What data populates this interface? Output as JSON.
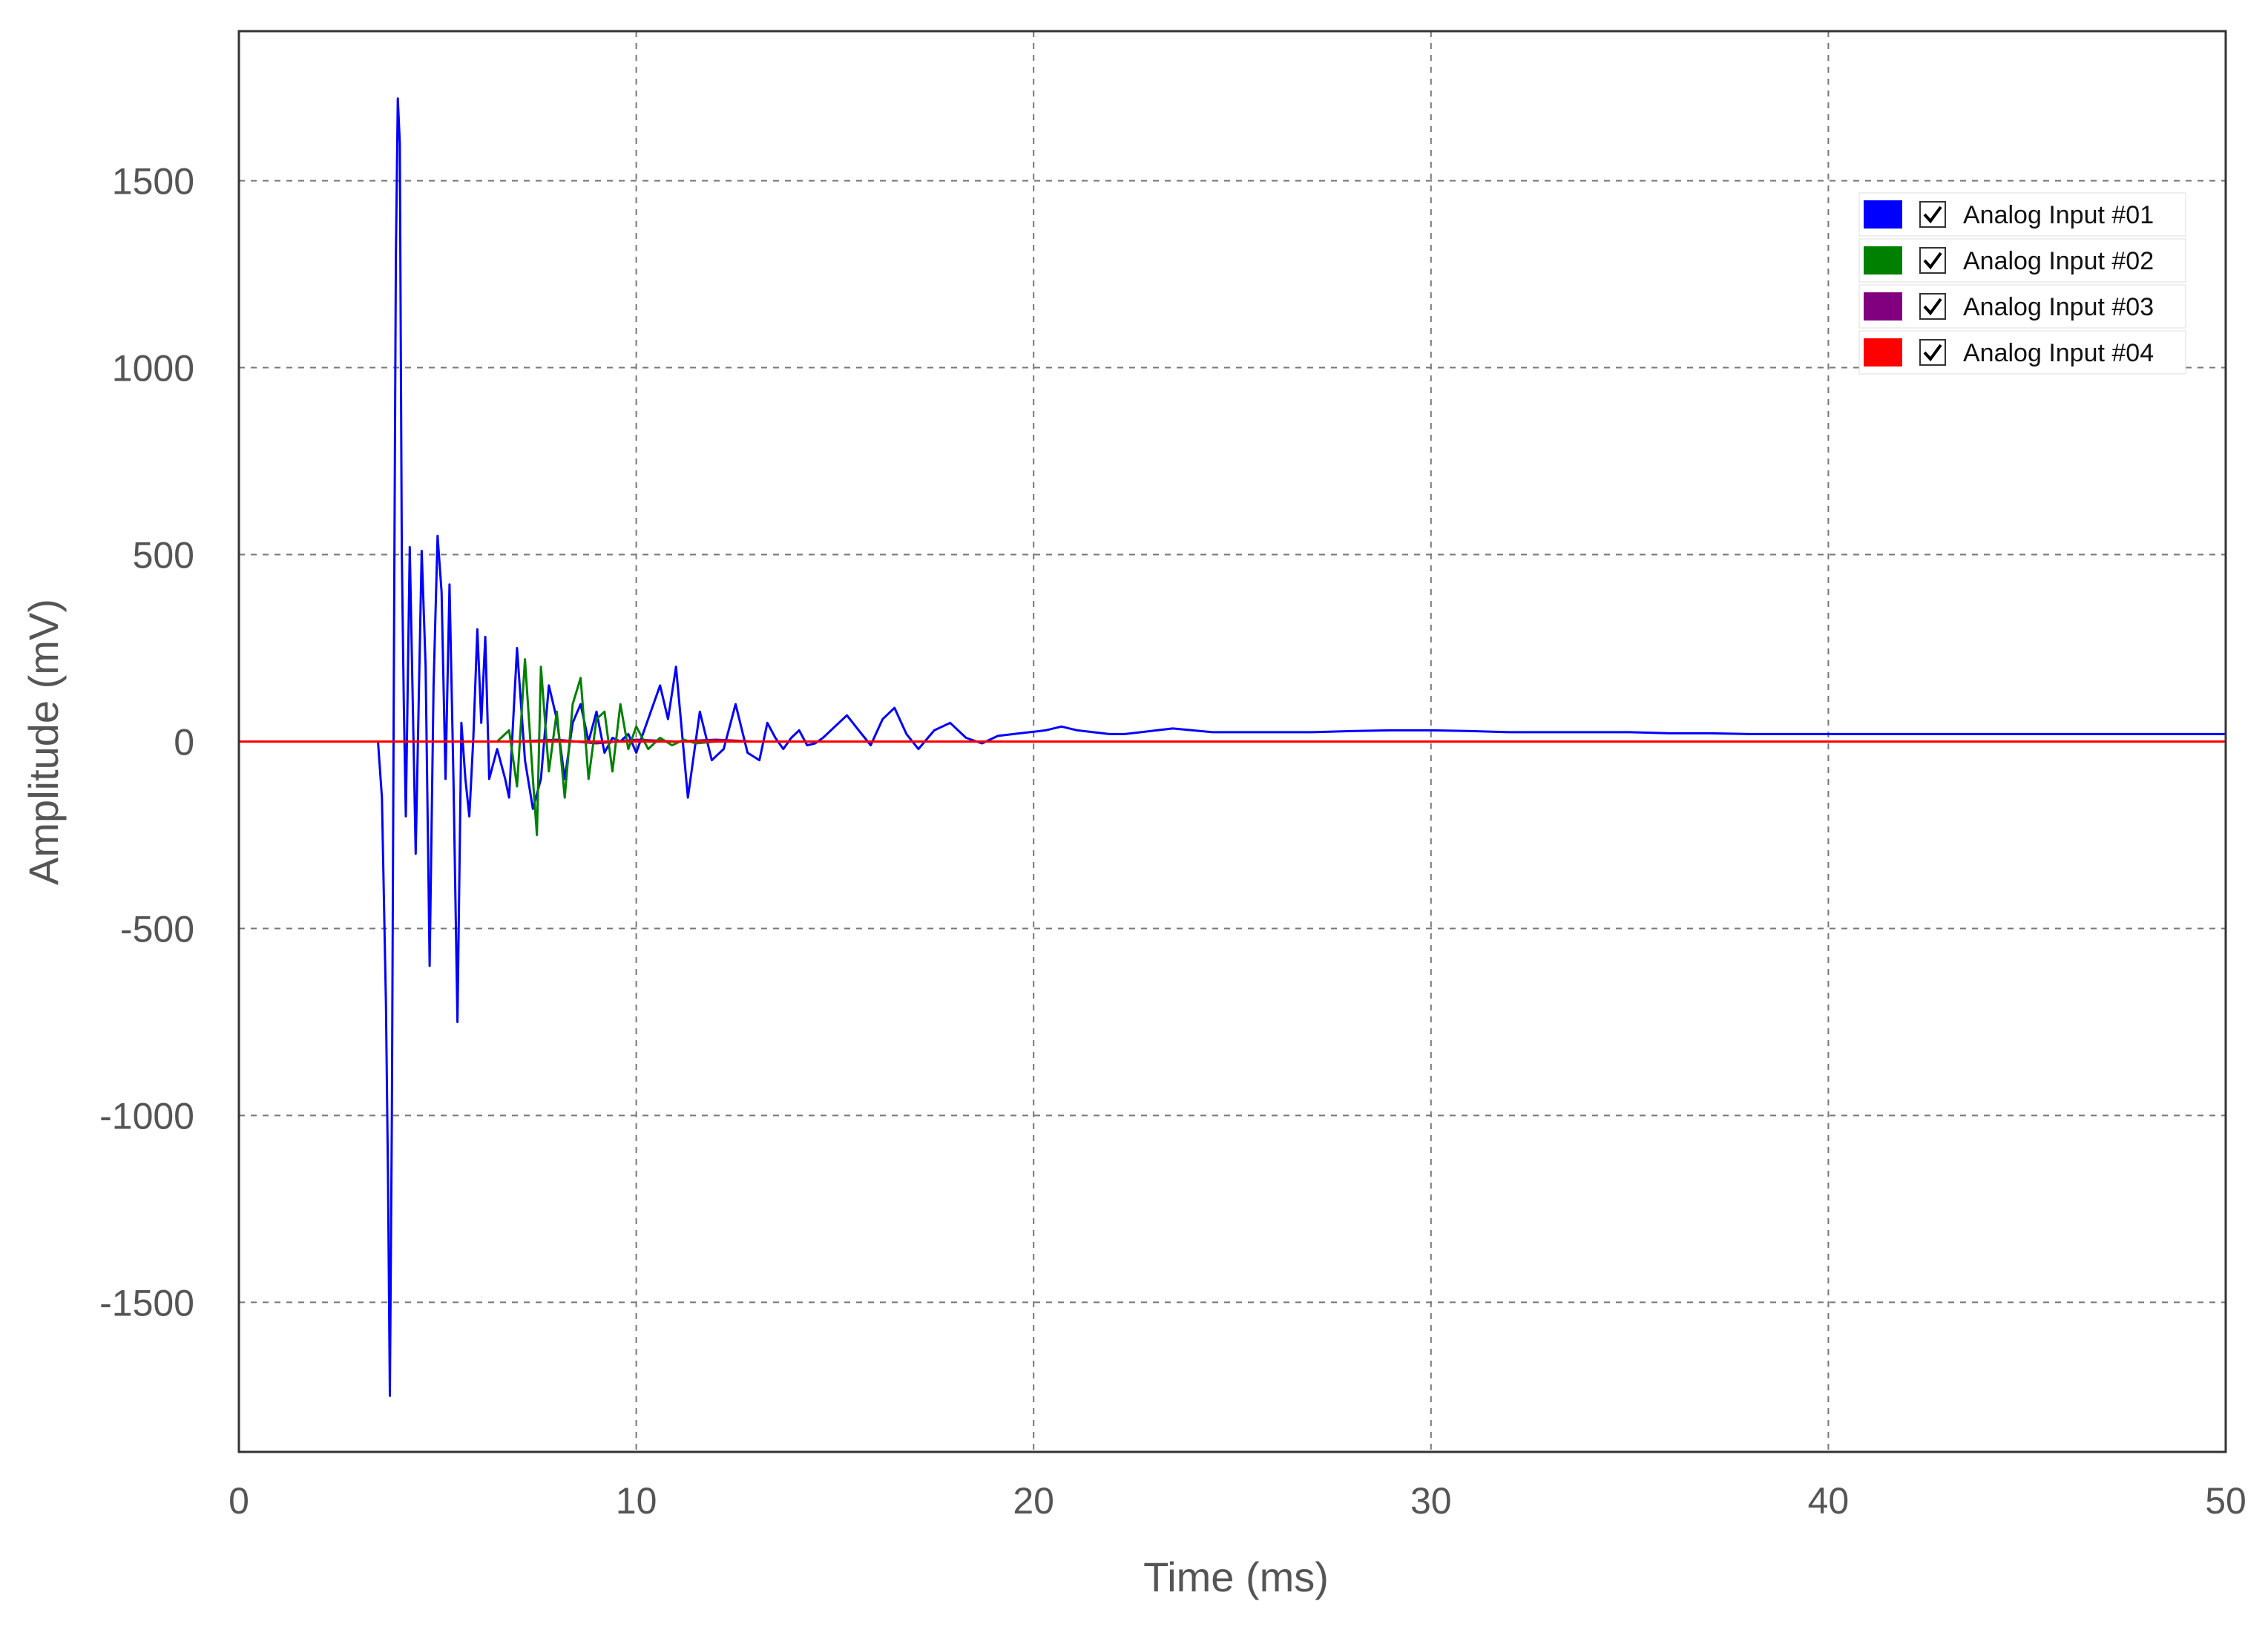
{
  "chart_data": {
    "type": "line",
    "title": "",
    "xlabel": "Time (ms)",
    "ylabel": "Amplitude (mV)",
    "xlim": [
      0,
      50
    ],
    "ylim": [
      -1900,
      1900
    ],
    "x_ticks": [
      0,
      10,
      20,
      30,
      40,
      50
    ],
    "y_ticks": [
      -1500,
      -1000,
      -500,
      0,
      500,
      1000,
      1500
    ],
    "x_tick_labels": [
      "0",
      "10",
      "20",
      "30",
      "40",
      "50"
    ],
    "y_tick_labels": [
      "-1500",
      "-1000",
      "-500",
      "0",
      "500",
      "1000",
      "1500"
    ],
    "grid": true,
    "legend_position": "top-right",
    "series": [
      {
        "name": "Analog Input #01",
        "color": "#0000ff",
        "checked": true,
        "x": [
          3.5,
          3.6,
          3.7,
          3.75,
          3.8,
          3.85,
          3.9,
          3.95,
          4.0,
          4.05,
          4.1,
          4.15,
          4.2,
          4.3,
          4.45,
          4.6,
          4.7,
          4.8,
          4.9,
          5.0,
          5.1,
          5.2,
          5.3,
          5.4,
          5.5,
          5.6,
          5.7,
          5.8,
          5.9,
          6.0,
          6.1,
          6.2,
          6.3,
          6.5,
          6.7,
          6.8,
          7.0,
          7.2,
          7.4,
          7.6,
          7.8,
          8.0,
          8.2,
          8.4,
          8.6,
          8.8,
          9.0,
          9.2,
          9.4,
          9.6,
          9.8,
          10.0,
          10.2,
          10.4,
          10.6,
          10.8,
          11.0,
          11.3,
          11.6,
          11.9,
          12.2,
          12.5,
          12.8,
          13.1,
          13.3,
          13.5,
          13.7,
          13.9,
          14.1,
          14.3,
          14.5,
          14.7,
          15.0,
          15.3,
          15.6,
          15.9,
          16.2,
          16.5,
          16.8,
          17.1,
          17.5,
          17.9,
          18.3,
          18.7,
          19.1,
          19.5,
          19.9,
          20.3,
          20.7,
          21.1,
          21.5,
          21.9,
          22.3,
          22.7,
          23.1,
          23.5,
          24.0,
          24.5,
          25.0,
          26.0,
          27.0,
          28.0,
          29.0,
          30.0,
          31.0,
          32.0,
          33.0,
          34.0,
          35.0,
          36.0,
          37.0,
          38.0,
          39.0,
          40.0,
          41.0,
          42.0,
          43.0,
          44.0,
          45.0,
          46.0,
          47.0,
          48.0,
          49.0,
          50.0
        ],
        "y": [
          0,
          -150,
          -700,
          -1150,
          -1750,
          -1000,
          200,
          1300,
          1720,
          1600,
          500,
          100,
          -200,
          520,
          -300,
          510,
          200,
          -600,
          150,
          550,
          400,
          -100,
          420,
          -100,
          -750,
          50,
          -100,
          -200,
          10,
          300,
          50,
          280,
          -100,
          -20,
          -100,
          -150,
          250,
          -50,
          -180,
          -100,
          150,
          60,
          -100,
          50,
          100,
          0,
          80,
          -30,
          10,
          0,
          20,
          -30,
          30,
          90,
          150,
          60,
          200,
          -150,
          80,
          -50,
          -20,
          100,
          -30,
          -50,
          50,
          10,
          -20,
          10,
          30,
          -10,
          -5,
          10,
          40,
          70,
          30,
          -10,
          60,
          90,
          20,
          -20,
          30,
          50,
          10,
          -5,
          15,
          20,
          25,
          30,
          40,
          30,
          25,
          20,
          20,
          25,
          30,
          35,
          30,
          25,
          25,
          25,
          25,
          28,
          30,
          30,
          28,
          25,
          25,
          25,
          25,
          22,
          22,
          20,
          20,
          20,
          20,
          20,
          20,
          20,
          20,
          20,
          20,
          20,
          20,
          20
        ]
      },
      {
        "name": "Analog Input #02",
        "color": "#008000",
        "checked": true,
        "x": [
          6.5,
          6.8,
          7.0,
          7.2,
          7.4,
          7.5,
          7.6,
          7.8,
          8.0,
          8.2,
          8.4,
          8.6,
          8.8,
          9.0,
          9.2,
          9.4,
          9.6,
          9.8,
          10.0,
          10.3,
          10.6,
          10.9,
          11.2,
          11.5,
          12.0,
          13.0,
          14.0,
          15.0,
          16.0,
          17.0,
          18.0,
          19.0,
          19.5
        ],
        "y": [
          0,
          30,
          -120,
          220,
          -100,
          -250,
          200,
          -80,
          80,
          -150,
          100,
          170,
          -100,
          60,
          80,
          -80,
          100,
          -20,
          40,
          -20,
          10,
          -10,
          5,
          -5,
          0,
          0,
          0,
          0,
          0,
          0,
          0,
          0,
          0
        ]
      },
      {
        "name": "Analog Input #03",
        "color": "#800080",
        "checked": true,
        "x": [
          7.0,
          8.0,
          9.0,
          10.0,
          11.0,
          12.0,
          13.0
        ],
        "y": [
          0,
          5,
          -5,
          5,
          0,
          5,
          0
        ]
      },
      {
        "name": "Analog Input #04",
        "color": "#ff0000",
        "checked": true,
        "x": [
          0,
          50
        ],
        "y": [
          0,
          0
        ]
      }
    ]
  }
}
